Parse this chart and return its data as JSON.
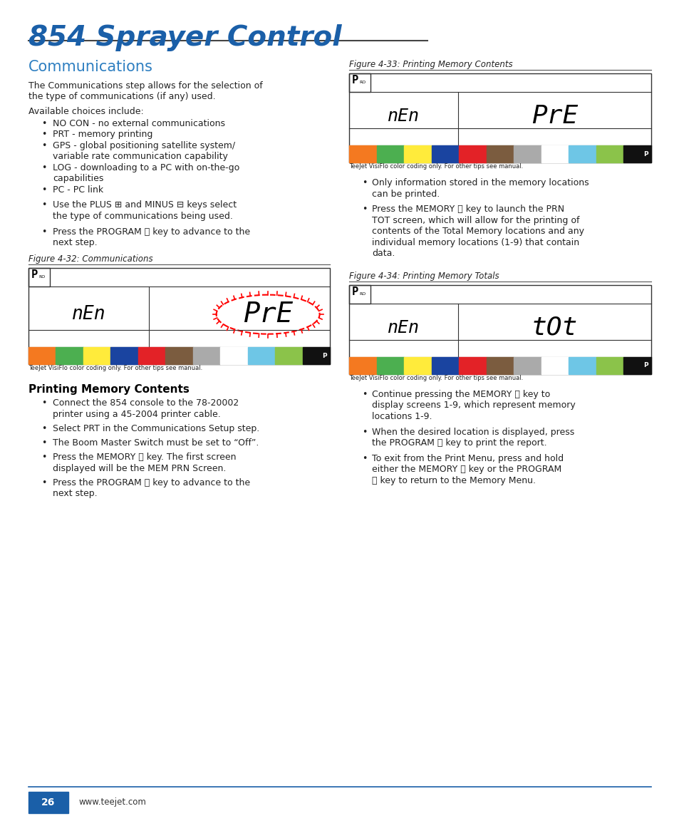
{
  "title": "854 Sprayer Control",
  "title_color": "#1a5fa8",
  "section_heading": "Communications",
  "section_heading_color": "#2e7fc1",
  "body_text_color": "#222222",
  "background_color": "#ffffff",
  "footer_bg_color": "#1a5fa8",
  "footer_text": "www.teejet.com",
  "footer_page": "26",
  "fig4_32_caption": "Figure 4-32: Communications",
  "fig4_33_caption": "Figure 4-33: Printing Memory Contents",
  "fig4_34_caption": "Figure 4-34: Printing Memory Totals",
  "color_bar": [
    "#f47920",
    "#4caf50",
    "#ffeb3b",
    "#1a44a0",
    "#e32227",
    "#7b5c3f",
    "#aaaaaa",
    "#ffffff",
    "#6ec6e6",
    "#8bc34a",
    "#111111"
  ],
  "teejet_label": "TeeJet VisiFlo color coding only. For other tips see manual.",
  "comm_para1a": "The Communications step allows for the selection of",
  "comm_para1b": "the type of communications (if any) used.",
  "comm_para2": "Available choices include:",
  "comm_bullets": [
    "NO CON - no external communications",
    "PRT - memory printing",
    "GPS - global positioning satellite system/\n    variable rate communication capability",
    "LOG - downloading to a PC with on-the-go\n    capabilities",
    "PC - PC link"
  ],
  "comm_bullet_plus": "Use the PLUS ⊞ and MINUS ⊟ keys select\n    the type of communications being used.",
  "comm_bullet_prog": "Press the PROGRAM Ⓟ key to advance to the\n    next step.",
  "print_heading": "Printing Memory Contents",
  "print_bullets": [
    "Connect the 854 console to the 78-20002\n    printer using a 45-2004 printer cable.",
    "Select PRT in the Communications Setup step.",
    "The Boom Master Switch must be set to “Off”.",
    "Press the MEMORY Ⓙ key. The first screen\n    displayed will be the MEM PRN Screen.",
    "Press the PROGRAM Ⓟ key to advance to the\n    next step."
  ],
  "right_col_bullets1": [
    "Only information stored in the memory locations\n    can be printed.",
    "Press the MEMORY Ⓙ key to launch the PRN\n    TOT screen, which will allow for the printing of\n    contents of the Total Memory locations and any\n    individual memory locations (1-9) that contain\n    data."
  ],
  "right_col_bullets2": [
    "Continue pressing the MEMORY Ⓙ key to\n    display screens 1-9, which represent memory\n    locations 1-9.",
    "When the desired location is displayed, press\n    the PROGRAM Ⓟ key to print the report.",
    "To exit from the Print Menu, press and hold\n    either the MEMORY Ⓙ key or the PROGRAM\n    Ⓟ key to return to the Memory Menu."
  ]
}
